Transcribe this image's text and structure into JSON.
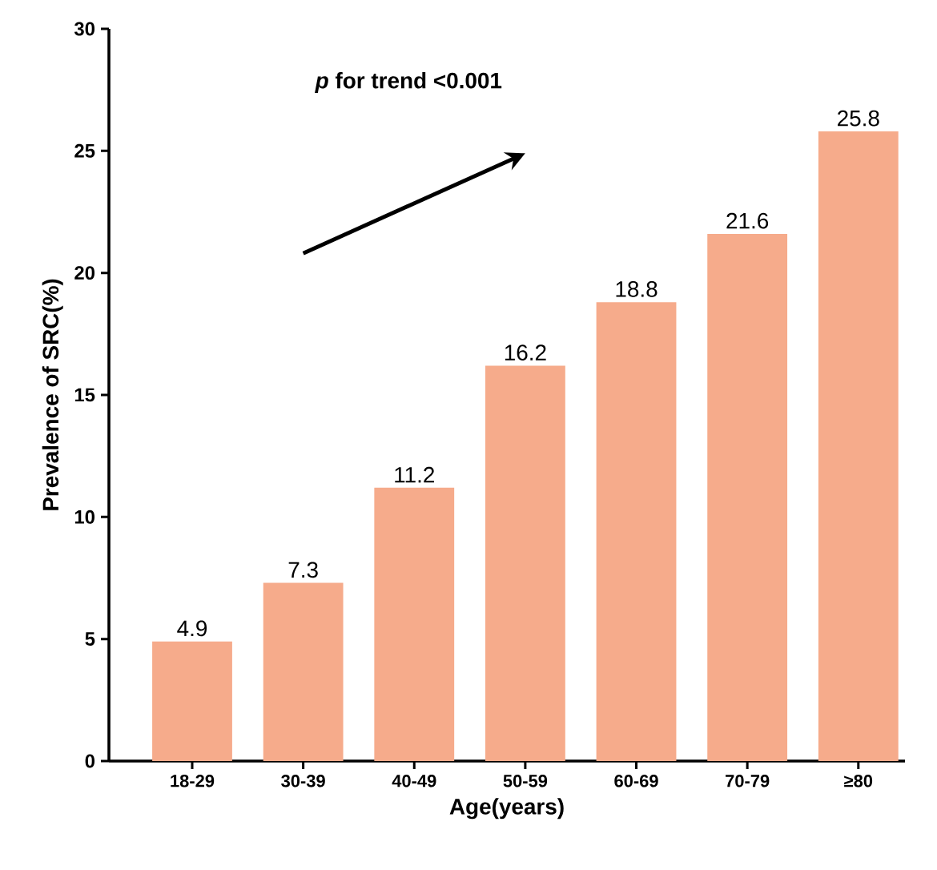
{
  "chart_data": {
    "type": "bar",
    "xlabel": "Age(years)",
    "ylabel": "Prevalence of SRC(%)",
    "categories": [
      "18-29",
      "30-39",
      "40-49",
      "50-59",
      "60-69",
      "70-79",
      "≥80"
    ],
    "values": [
      4.9,
      7.3,
      11.2,
      16.2,
      18.8,
      21.6,
      25.8
    ],
    "color": "#f6ab8b",
    "ylim": [
      0,
      30
    ],
    "yticks": [
      0,
      5,
      10,
      15,
      20,
      25,
      30
    ],
    "data_labels": true,
    "annotations": [
      "*p* for trend <0.001"
    ]
  }
}
